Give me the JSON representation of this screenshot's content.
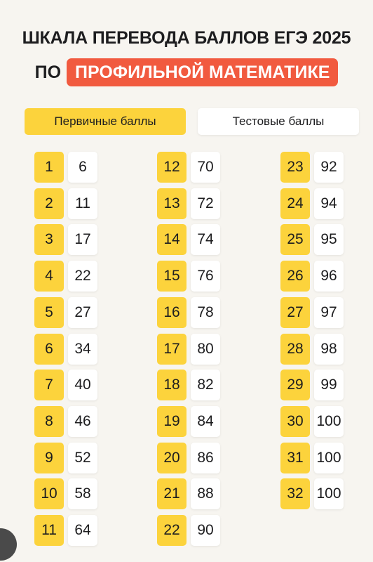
{
  "title": {
    "line1": "ШКАЛА ПЕРЕВОДА БАЛЛОВ ЕГЭ 2025",
    "line2_prefix": "ПО",
    "line2_highlight": "ПРОФИЛЬНОЙ МАТЕМАТИКЕ"
  },
  "legend": {
    "primary_label": "Первичные баллы",
    "test_label": "Тестовые баллы"
  },
  "colors": {
    "primary": "#fcd33c",
    "highlight": "#f15a3f",
    "background": "#f7f5f0"
  },
  "columns": [
    [
      {
        "primary": "1",
        "test": "6"
      },
      {
        "primary": "2",
        "test": "11"
      },
      {
        "primary": "3",
        "test": "17"
      },
      {
        "primary": "4",
        "test": "22"
      },
      {
        "primary": "5",
        "test": "27"
      },
      {
        "primary": "6",
        "test": "34"
      },
      {
        "primary": "7",
        "test": "40"
      },
      {
        "primary": "8",
        "test": "46"
      },
      {
        "primary": "9",
        "test": "52"
      },
      {
        "primary": "10",
        "test": "58"
      },
      {
        "primary": "11",
        "test": "64"
      }
    ],
    [
      {
        "primary": "12",
        "test": "70"
      },
      {
        "primary": "13",
        "test": "72"
      },
      {
        "primary": "14",
        "test": "74"
      },
      {
        "primary": "15",
        "test": "76"
      },
      {
        "primary": "16",
        "test": "78"
      },
      {
        "primary": "17",
        "test": "80"
      },
      {
        "primary": "18",
        "test": "82"
      },
      {
        "primary": "19",
        "test": "84"
      },
      {
        "primary": "20",
        "test": "86"
      },
      {
        "primary": "21",
        "test": "88"
      },
      {
        "primary": "22",
        "test": "90"
      }
    ],
    [
      {
        "primary": "23",
        "test": "92"
      },
      {
        "primary": "24",
        "test": "94"
      },
      {
        "primary": "25",
        "test": "95"
      },
      {
        "primary": "26",
        "test": "96"
      },
      {
        "primary": "27",
        "test": "97"
      },
      {
        "primary": "28",
        "test": "98"
      },
      {
        "primary": "29",
        "test": "99"
      },
      {
        "primary": "30",
        "test": "100"
      },
      {
        "primary": "31",
        "test": "100"
      },
      {
        "primary": "32",
        "test": "100"
      }
    ]
  ]
}
